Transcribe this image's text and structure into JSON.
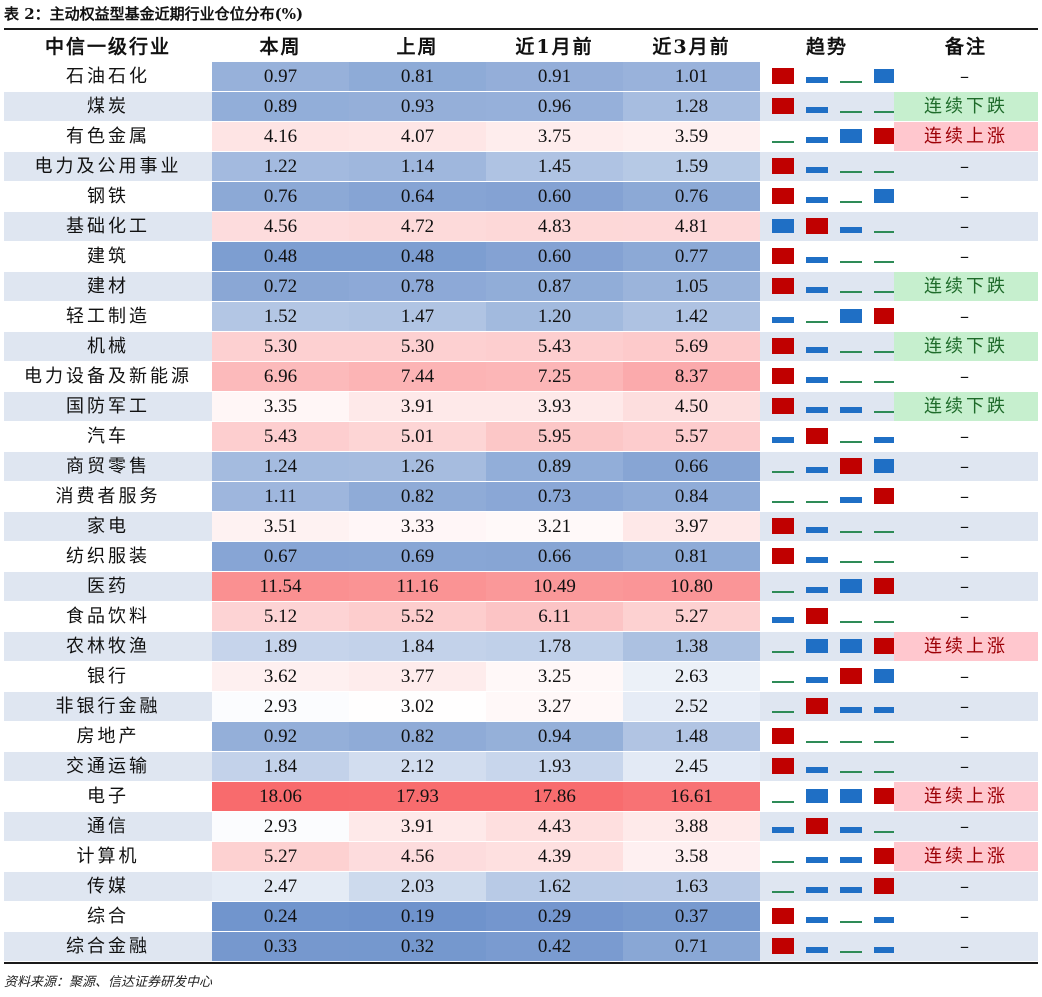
{
  "caption": "表 2：主动权益型基金近期行业仓位分布(%)",
  "headers": [
    "中信一级行业",
    "本周",
    "上周",
    "近1月前",
    "近3月前",
    "趋势",
    "备注"
  ],
  "source": "资料来源：聚源、信达证券研发中心",
  "colors": {
    "up": "#c00000",
    "down": "#1f6fc5",
    "flat": "#2e8b57",
    "note_down_bg": "#c6efce",
    "note_up_bg": "#ffc7ce",
    "low_scale": "#6f93cc",
    "high_scale": "#f8696b"
  },
  "legend_trend": "trend icons per period: big red square = up, blue bar = down/flat, thin green line = smallest",
  "rows": [
    {
      "name": "石油石化",
      "v": [
        0.97,
        0.81,
        0.91,
        1.01
      ],
      "trend": [
        "R",
        "b",
        "g",
        "B"
      ],
      "note": "–",
      "nt": "none"
    },
    {
      "name": "煤炭",
      "v": [
        0.89,
        0.93,
        0.96,
        1.28
      ],
      "trend": [
        "R",
        "b",
        "g",
        "g"
      ],
      "note": "连续下跌",
      "nt": "down"
    },
    {
      "name": "有色金属",
      "v": [
        4.16,
        4.07,
        3.75,
        3.59
      ],
      "trend": [
        "g",
        "b",
        "B",
        "R"
      ],
      "note": "连续上涨",
      "nt": "up"
    },
    {
      "name": "电力及公用事业",
      "v": [
        1.22,
        1.14,
        1.45,
        1.59
      ],
      "trend": [
        "R",
        "b",
        "g",
        "g"
      ],
      "note": "–",
      "nt": "none"
    },
    {
      "name": "钢铁",
      "v": [
        0.76,
        0.64,
        0.6,
        0.76
      ],
      "trend": [
        "R",
        "b",
        "g",
        "B"
      ],
      "note": "–",
      "nt": "none"
    },
    {
      "name": "基础化工",
      "v": [
        4.56,
        4.72,
        4.83,
        4.81
      ],
      "trend": [
        "B",
        "R",
        "b",
        "g"
      ],
      "note": "–",
      "nt": "none"
    },
    {
      "name": "建筑",
      "v": [
        0.48,
        0.48,
        0.6,
        0.77
      ],
      "trend": [
        "R",
        "b",
        "g",
        "g"
      ],
      "note": "–",
      "nt": "none"
    },
    {
      "name": "建材",
      "v": [
        0.72,
        0.78,
        0.87,
        1.05
      ],
      "trend": [
        "R",
        "b",
        "g",
        "g"
      ],
      "note": "连续下跌",
      "nt": "down"
    },
    {
      "name": "轻工制造",
      "v": [
        1.52,
        1.47,
        1.2,
        1.42
      ],
      "trend": [
        "b",
        "g",
        "B",
        "R"
      ],
      "note": "–",
      "nt": "none"
    },
    {
      "name": "机械",
      "v": [
        5.3,
        5.3,
        5.43,
        5.69
      ],
      "trend": [
        "R",
        "b",
        "g",
        "g"
      ],
      "note": "连续下跌",
      "nt": "down"
    },
    {
      "name": "电力设备及新能源",
      "v": [
        6.96,
        7.44,
        7.25,
        8.37
      ],
      "trend": [
        "R",
        "b",
        "g",
        "g"
      ],
      "note": "–",
      "nt": "none"
    },
    {
      "name": "国防军工",
      "v": [
        3.35,
        3.91,
        3.93,
        4.5
      ],
      "trend": [
        "R",
        "b",
        "b",
        "g"
      ],
      "note": "连续下跌",
      "nt": "down"
    },
    {
      "name": "汽车",
      "v": [
        5.43,
        5.01,
        5.95,
        5.57
      ],
      "trend": [
        "b",
        "R",
        "g",
        "b"
      ],
      "note": "–",
      "nt": "none"
    },
    {
      "name": "商贸零售",
      "v": [
        1.24,
        1.26,
        0.89,
        0.66
      ],
      "trend": [
        "g",
        "b",
        "R",
        "B"
      ],
      "note": "–",
      "nt": "none"
    },
    {
      "name": "消费者服务",
      "v": [
        1.11,
        0.82,
        0.73,
        0.84
      ],
      "trend": [
        "g",
        "g",
        "b",
        "R"
      ],
      "note": "–",
      "nt": "none"
    },
    {
      "name": "家电",
      "v": [
        3.51,
        3.33,
        3.21,
        3.97
      ],
      "trend": [
        "R",
        "b",
        "g",
        "g"
      ],
      "note": "–",
      "nt": "none"
    },
    {
      "name": "纺织服装",
      "v": [
        0.67,
        0.69,
        0.66,
        0.81
      ],
      "trend": [
        "R",
        "b",
        "g",
        "g"
      ],
      "note": "–",
      "nt": "none"
    },
    {
      "name": "医药",
      "v": [
        11.54,
        11.16,
        10.49,
        10.8
      ],
      "trend": [
        "g",
        "b",
        "B",
        "R"
      ],
      "note": "–",
      "nt": "none"
    },
    {
      "name": "食品饮料",
      "v": [
        5.12,
        5.52,
        6.11,
        5.27
      ],
      "trend": [
        "b",
        "R",
        "g",
        "g"
      ],
      "note": "–",
      "nt": "none"
    },
    {
      "name": "农林牧渔",
      "v": [
        1.89,
        1.84,
        1.78,
        1.38
      ],
      "trend": [
        "g",
        "B",
        "B",
        "R"
      ],
      "note": "连续上涨",
      "nt": "up"
    },
    {
      "name": "银行",
      "v": [
        3.62,
        3.77,
        3.25,
        2.63
      ],
      "trend": [
        "g",
        "b",
        "R",
        "B"
      ],
      "note": "–",
      "nt": "none"
    },
    {
      "name": "非银行金融",
      "v": [
        2.93,
        3.02,
        3.27,
        2.52
      ],
      "trend": [
        "g",
        "R",
        "b",
        "b"
      ],
      "note": "–",
      "nt": "none"
    },
    {
      "name": "房地产",
      "v": [
        0.92,
        0.82,
        0.94,
        1.48
      ],
      "trend": [
        "R",
        "g",
        "g",
        "g"
      ],
      "note": "–",
      "nt": "none"
    },
    {
      "name": "交通运输",
      "v": [
        1.84,
        2.12,
        1.93,
        2.45
      ],
      "trend": [
        "R",
        "b",
        "g",
        "g"
      ],
      "note": "–",
      "nt": "none"
    },
    {
      "name": "电子",
      "v": [
        18.06,
        17.93,
        17.86,
        16.61
      ],
      "trend": [
        "g",
        "B",
        "B",
        "R"
      ],
      "note": "连续上涨",
      "nt": "up"
    },
    {
      "name": "通信",
      "v": [
        2.93,
        3.91,
        4.43,
        3.88
      ],
      "trend": [
        "b",
        "R",
        "b",
        "g"
      ],
      "note": "–",
      "nt": "none"
    },
    {
      "name": "计算机",
      "v": [
        5.27,
        4.56,
        4.39,
        3.58
      ],
      "trend": [
        "g",
        "b",
        "b",
        "R"
      ],
      "note": "连续上涨",
      "nt": "up"
    },
    {
      "name": "传媒",
      "v": [
        2.47,
        2.03,
        1.62,
        1.63
      ],
      "trend": [
        "g",
        "b",
        "b",
        "R"
      ],
      "note": "–",
      "nt": "none"
    },
    {
      "name": "综合",
      "v": [
        0.24,
        0.19,
        0.29,
        0.37
      ],
      "trend": [
        "R",
        "b",
        "g",
        "b"
      ],
      "note": "–",
      "nt": "none"
    },
    {
      "name": "综合金融",
      "v": [
        0.33,
        0.32,
        0.42,
        0.71
      ],
      "trend": [
        "R",
        "b",
        "g",
        "b"
      ],
      "note": "–",
      "nt": "none"
    }
  ]
}
